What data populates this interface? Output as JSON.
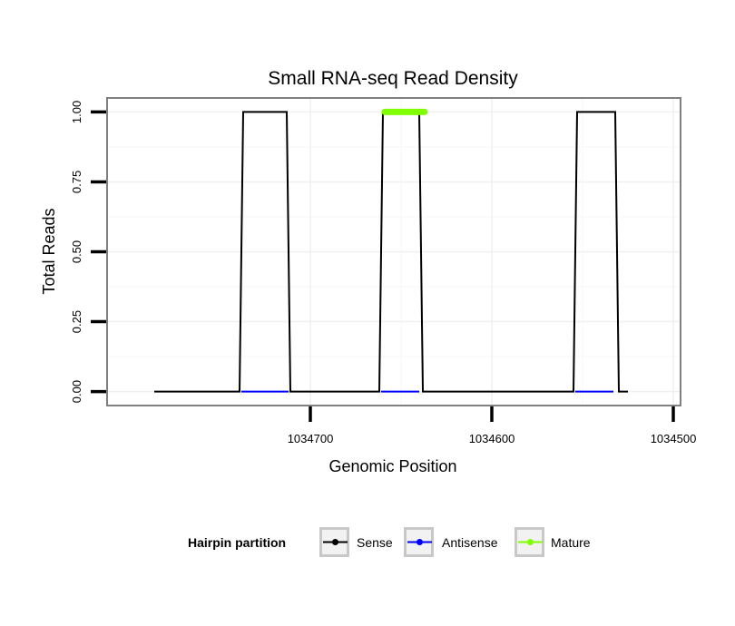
{
  "chart_data": {
    "type": "line",
    "title": "Small RNA-seq Read Density",
    "xlabel": "Genomic Position",
    "ylabel": "Total Reads",
    "x_reversed": true,
    "xlim": [
      1034812,
      1034496
    ],
    "ylim": [
      -0.05,
      1.05
    ],
    "x_ticks": [
      1034700,
      1034600,
      1034500
    ],
    "x_tick_labels": [
      "1034700",
      "1034600",
      "1034500"
    ],
    "y_ticks": [
      0,
      0.25,
      0.5,
      0.75,
      1
    ],
    "y_tick_labels": [
      "0.00",
      "0.25",
      "0.50",
      "0.75",
      "1.00"
    ],
    "grid": true,
    "legend": {
      "title": "Hairpin partition",
      "position": "bottom",
      "entries": [
        {
          "name": "Sense",
          "color": "#000000"
        },
        {
          "name": "Antisense",
          "color": "#0000ff"
        },
        {
          "name": "Mature",
          "color": "#7fff00"
        }
      ]
    },
    "series": [
      {
        "name": "Antisense",
        "color": "#0000ff",
        "segments": [
          {
            "x": [
              1034738,
              1034712
            ],
            "y": [
              0,
              0
            ]
          },
          {
            "x": [
              1034661,
              1034640
            ],
            "y": [
              0,
              0
            ]
          },
          {
            "x": [
              1034554,
              1034533
            ],
            "y": [
              0,
              0
            ]
          }
        ]
      },
      {
        "name": "Sense",
        "color": "#000000",
        "segments": [
          {
            "x": [
              1034786,
              1034739,
              1034737,
              1034713,
              1034711,
              1034662,
              1034660,
              1034640,
              1034638,
              1034555,
              1034553,
              1034532,
              1034530,
              1034525
            ],
            "y": [
              0,
              0,
              1,
              1,
              0,
              0,
              1,
              1,
              0,
              0,
              1,
              1,
              0,
              0
            ]
          }
        ]
      },
      {
        "name": "Mature",
        "color": "#7fff00",
        "segments": [
          {
            "x": [
              1034659,
              1034637
            ],
            "y": [
              1,
              1
            ]
          }
        ]
      }
    ]
  }
}
